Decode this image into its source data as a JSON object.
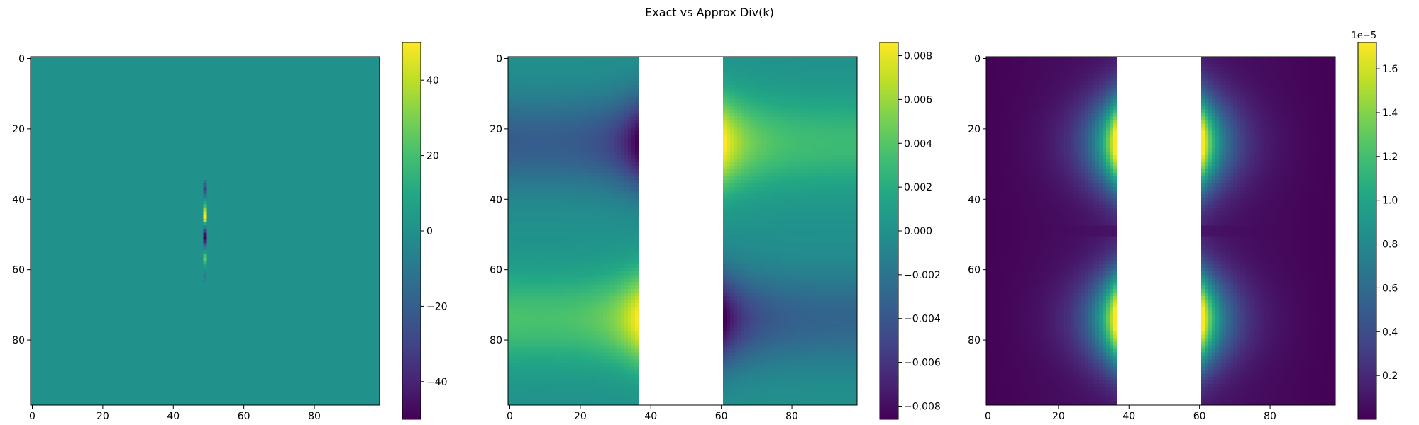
{
  "figure": {
    "title": "Exact vs Approx Div(k)"
  },
  "chart_data": [
    {
      "type": "heatmap",
      "title": "",
      "grid_size": 99,
      "xlim": [
        0,
        98
      ],
      "ylim": [
        98,
        0
      ],
      "xticks": [
        0,
        20,
        40,
        60,
        80
      ],
      "yticks": [
        0,
        20,
        40,
        60,
        80
      ],
      "colormap": "viridis",
      "colorbar": {
        "range": [
          -50,
          50
        ],
        "ticks": [
          -40,
          -20,
          0,
          20,
          40
        ],
        "tick_labels": [
          "−40",
          "−20",
          "0",
          "20",
          "40"
        ],
        "offset_label": ""
      },
      "description_values": {
        "background": 0,
        "spike_column": 49,
        "spike_rows": [
          [
            34,
            0
          ],
          [
            35,
            -10
          ],
          [
            36,
            -20
          ],
          [
            37,
            -30
          ],
          [
            38,
            -20
          ],
          [
            39,
            -10
          ],
          [
            40,
            0
          ],
          [
            41,
            10
          ],
          [
            42,
            20
          ],
          [
            43,
            35
          ],
          [
            44,
            45
          ],
          [
            45,
            50
          ],
          [
            46,
            40
          ],
          [
            47,
            10
          ],
          [
            48,
            -10
          ],
          [
            49,
            -30
          ],
          [
            50,
            -45
          ],
          [
            51,
            -50
          ],
          [
            52,
            -40
          ],
          [
            53,
            -20
          ],
          [
            54,
            -5
          ],
          [
            55,
            5
          ],
          [
            56,
            20
          ],
          [
            57,
            25
          ],
          [
            58,
            15
          ],
          [
            59,
            5
          ],
          [
            60,
            0
          ],
          [
            61,
            -5
          ],
          [
            62,
            -8
          ],
          [
            63,
            -5
          ],
          [
            64,
            0
          ]
        ]
      }
    },
    {
      "type": "heatmap",
      "title": "",
      "grid_size": 99,
      "xlim": [
        0,
        98
      ],
      "ylim": [
        98,
        0
      ],
      "xticks": [
        0,
        20,
        40,
        60,
        80
      ],
      "yticks": [
        0,
        20,
        40,
        60,
        80
      ],
      "colormap": "viridis",
      "colorbar": {
        "range": [
          -0.0086,
          0.0086
        ],
        "ticks": [
          -0.008,
          -0.006,
          -0.004,
          -0.002,
          0.0,
          0.002,
          0.004,
          0.006,
          0.008
        ],
        "tick_labels": [
          "−0.008",
          "−0.006",
          "−0.004",
          "−0.002",
          "0.000",
          "0.002",
          "0.004",
          "0.006",
          "0.008"
        ],
        "offset_label": ""
      },
      "nan_columns": [
        37,
        61
      ],
      "field": "antisymmetric dipole: positive on left lower / right upper near gap edges",
      "peak_abs": 0.0086
    },
    {
      "type": "heatmap",
      "title": "",
      "grid_size": 99,
      "xlim": [
        0,
        98
      ],
      "ylim": [
        98,
        0
      ],
      "xticks": [
        0,
        20,
        40,
        60,
        80
      ],
      "yticks": [
        0,
        20,
        40,
        60,
        80
      ],
      "colormap": "viridis",
      "colorbar": {
        "range": [
          0.0,
          1.72
        ],
        "ticks": [
          0.2,
          0.4,
          0.6,
          0.8,
          1.0,
          1.2,
          1.4,
          1.6
        ],
        "tick_labels": [
          "0.2",
          "0.4",
          "0.6",
          "0.8",
          "1.0",
          "1.2",
          "1.4",
          "1.6"
        ],
        "offset_label": "1e−5"
      },
      "nan_columns": [
        37,
        61
      ],
      "field": "absolute difference, maxima near gap edges at rows ~25 and ~75, minimum along row 49",
      "peak": 1.72
    }
  ]
}
